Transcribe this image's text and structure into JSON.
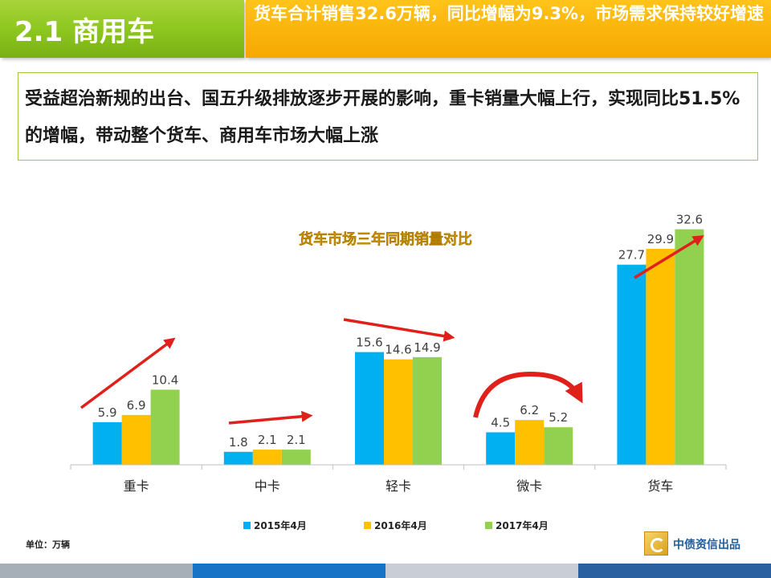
{
  "header": {
    "section_title": "2.1 商用车",
    "headline": "货车合计销售32.6万辆，同比增幅为9.3%，市场需求保持较好增速"
  },
  "summary": {
    "text": "受益超治新规的出台、国五升级排放逐步开展的影响，重卡销量大幅上行，实现同比51.5%的增幅，带动整个货车、商用车市场大幅上涨"
  },
  "chart_data": {
    "type": "bar",
    "title": "货车市场三年同期销量对比",
    "categories": [
      "重卡",
      "中卡",
      "轻卡",
      "微卡",
      "货车"
    ],
    "series": [
      {
        "name": "2015年4月",
        "values": [
          5.9,
          1.8,
          15.6,
          4.5,
          27.7
        ],
        "color": "#00b0f0"
      },
      {
        "name": "2016年4月",
        "values": [
          6.9,
          2.1,
          14.6,
          6.2,
          29.9
        ],
        "color": "#ffc000"
      },
      {
        "name": "2017年4月",
        "values": [
          10.4,
          2.1,
          14.9,
          5.2,
          32.6
        ],
        "color": "#92d050"
      }
    ],
    "ylim": [
      0,
      36
    ],
    "grid": false,
    "legend_position": "bottom",
    "unit_note": "单位：万辆"
  },
  "colors": {
    "title_green": "#8cc51e",
    "headline_orange": "#f5b400",
    "chart_title": "#ffd000",
    "arrow": "#e0201b"
  },
  "footer": {
    "brand": "中债资信出品",
    "colors": [
      "#a6aeb8",
      "#1673c6",
      "#c9ced6",
      "#2a5fa0"
    ]
  }
}
